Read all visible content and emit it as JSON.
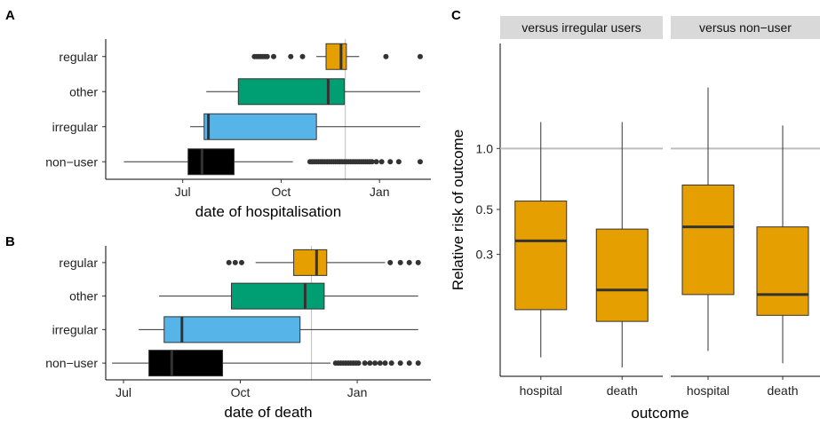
{
  "panels": {
    "a": "A",
    "b": "B",
    "c": "C"
  },
  "chart_data": [
    {
      "id": "A",
      "type": "boxplot",
      "orientation": "horizontal",
      "xlabel": "date of hospitalisation",
      "x_ticks": [
        {
          "label": "Jul",
          "value": 0
        },
        {
          "label": "Oct",
          "value": 92
        },
        {
          "label": "Jan",
          "value": 184
        }
      ],
      "xlim": [
        -72,
        232
      ],
      "reference_line_x": 152,
      "categories": [
        "non−user",
        "irregular",
        "other",
        "regular"
      ],
      "colors": [
        "#000000",
        "#56B4E9",
        "#009E73",
        "#E69F00"
      ],
      "boxes": [
        {
          "label": "non−user",
          "whisker_low": -55,
          "q1": 5,
          "median": 18,
          "q3": 48,
          "whisker_high": 103,
          "outliers": [
            119,
            121,
            123,
            125,
            127,
            129,
            131,
            133,
            135,
            137,
            139,
            141,
            143,
            145,
            147,
            149,
            151,
            153,
            155,
            157,
            159,
            161,
            163,
            165,
            167,
            169,
            171,
            173,
            175,
            177,
            181,
            186,
            194,
            202,
            222
          ]
        },
        {
          "label": "irregular",
          "whisker_low": 7,
          "q1": 20,
          "median": 24,
          "q3": 125,
          "whisker_high": 222,
          "outliers": []
        },
        {
          "label": "other",
          "whisker_low": 22,
          "q1": 52,
          "median": 136,
          "q3": 151,
          "whisker_high": 222,
          "outliers": []
        },
        {
          "label": "regular",
          "whisker_low": 125,
          "q1": 134,
          "median": 148,
          "q3": 153,
          "whisker_high": 165,
          "outliers": [
            67,
            69,
            71,
            73,
            75,
            77,
            79,
            85,
            101,
            112,
            190,
            222
          ]
        }
      ]
    },
    {
      "id": "B",
      "type": "boxplot",
      "orientation": "horizontal",
      "xlabel": "date of death",
      "x_ticks": [
        {
          "label": "Jul",
          "value": 0
        },
        {
          "label": "Oct",
          "value": 92
        },
        {
          "label": "Jan",
          "value": 184
        }
      ],
      "xlim": [
        -14,
        242
      ],
      "reference_line_x": 148,
      "categories": [
        "non−user",
        "irregular",
        "other",
        "regular"
      ],
      "colors": [
        "#000000",
        "#56B4E9",
        "#009E73",
        "#E69F00"
      ],
      "boxes": [
        {
          "label": "non−user",
          "whisker_low": -9,
          "q1": 20,
          "median": 38,
          "q3": 78,
          "whisker_high": 163,
          "outliers": [
            167,
            169,
            171,
            173,
            175,
            177,
            179,
            181,
            183,
            185,
            190,
            194,
            198,
            202,
            206,
            211,
            218,
            225,
            232
          ]
        },
        {
          "label": "irregular",
          "whisker_low": 12,
          "q1": 32,
          "median": 46,
          "q3": 139,
          "whisker_high": 232,
          "outliers": []
        },
        {
          "label": "other",
          "whisker_low": 28,
          "q1": 85,
          "median": 143,
          "q3": 158,
          "whisker_high": 232,
          "outliers": []
        },
        {
          "label": "regular",
          "whisker_low": 104,
          "q1": 134,
          "median": 152,
          "q3": 160,
          "whisker_high": 206,
          "outliers": [
            83,
            88,
            93,
            210,
            218,
            225,
            232
          ]
        }
      ]
    },
    {
      "id": "C",
      "type": "boxplot",
      "orientation": "vertical",
      "ylabel": "Relative risk of outcome",
      "xlabel": "outcome",
      "y_scale": "log",
      "ylim": [
        0.075,
        3.3
      ],
      "y_ticks": [
        {
          "label": "0.3",
          "value": 0.3
        },
        {
          "label": "0.5",
          "value": 0.5
        },
        {
          "label": "1.0",
          "value": 1.0
        }
      ],
      "reference_line_y": 1.0,
      "color": "#E69F00",
      "facets": [
        {
          "strip": "versus irregular users",
          "categories": [
            "hospital",
            "death"
          ],
          "boxes": [
            {
              "label": "hospital",
              "whisker_low": 0.093,
              "q1": 0.16,
              "median": 0.35,
              "q3": 0.55,
              "whisker_high": 1.35
            },
            {
              "label": "death",
              "whisker_low": 0.083,
              "q1": 0.14,
              "median": 0.2,
              "q3": 0.4,
              "whisker_high": 1.35
            }
          ]
        },
        {
          "strip": "versus non−user",
          "categories": [
            "hospital",
            "death"
          ],
          "boxes": [
            {
              "label": "hospital",
              "whisker_low": 0.1,
              "q1": 0.19,
              "median": 0.41,
              "q3": 0.66,
              "whisker_high": 2.0
            },
            {
              "label": "death",
              "whisker_low": 0.087,
              "q1": 0.15,
              "median": 0.19,
              "q3": 0.41,
              "whisker_high": 1.3
            }
          ]
        }
      ]
    }
  ]
}
